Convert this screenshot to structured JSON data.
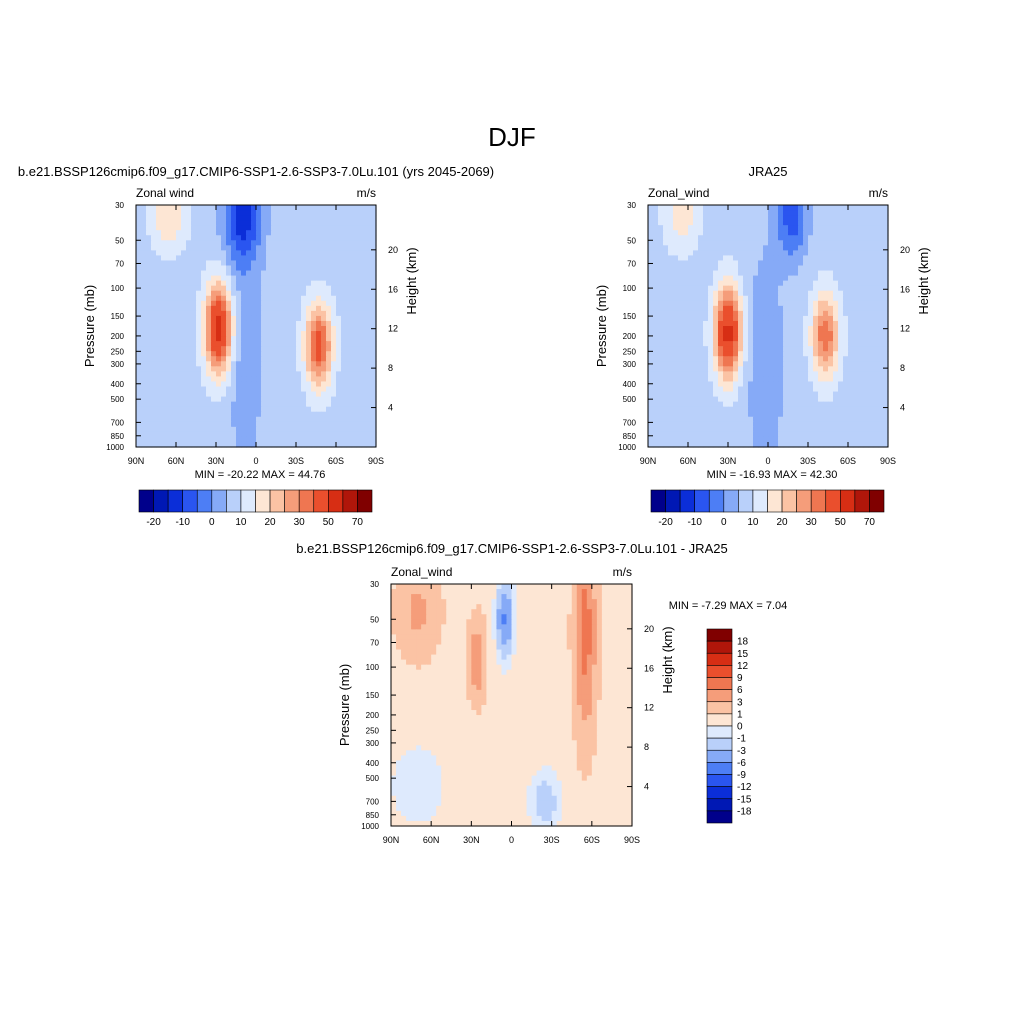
{
  "figure_title": "DJF",
  "chart_data": [
    {
      "type": "heatmap",
      "title": "b.e21.BSSP126cmip6.f09_g17.CMIP6-SSP1-2.6-SSP3-7.0Lu.101 (yrs 2045-2069)",
      "left_label": "Zonal wind",
      "right_label": "m/s",
      "ylabel": "Pressure (mb)",
      "y2label": "Height (km)",
      "xticks": [
        "90N",
        "60N",
        "30N",
        "0",
        "30S",
        "60S",
        "90S"
      ],
      "xticks_deg": [
        90,
        60,
        30,
        0,
        -30,
        -60,
        -90
      ],
      "yticks": [
        30,
        50,
        70,
        100,
        150,
        200,
        250,
        300,
        400,
        500,
        700,
        850,
        1000
      ],
      "y2ticks": [
        20,
        16,
        12,
        8,
        4
      ],
      "stats": "MIN = -20.22  MAX =  44.76",
      "min": -20.22,
      "max": 44.76,
      "colorbar": {
        "orientation": "horizontal",
        "colors": [
          "#00008b",
          "#0018b4",
          "#0b2ed8",
          "#2a55f0",
          "#4d7ef5",
          "#86aaf7",
          "#b9d0fa",
          "#deeafd",
          "#fde6d4",
          "#fbc3a4",
          "#f59d7a",
          "#ef7651",
          "#ea4f2d",
          "#d72e14",
          "#b0160a",
          "#800000"
        ],
        "labels": [
          "-20",
          "-10",
          "0",
          "10",
          "20",
          "30",
          "50",
          "70"
        ]
      },
      "features": [
        {
          "lat": 28,
          "p": 180,
          "value": 40,
          "sx": 7,
          "sy": 0.45
        },
        {
          "lat": -47,
          "p": 230,
          "value": 30,
          "sx": 7,
          "sy": 0.42
        },
        {
          "lat": 65,
          "p": 35,
          "value": 12,
          "sx": 9,
          "sy": 0.35
        },
        {
          "lat": 10,
          "p": 35,
          "value": -20,
          "sx": 10,
          "sy": 0.5
        },
        {
          "lat": 8,
          "p": 300,
          "value": -6,
          "sx": 10,
          "sy": 1.2
        }
      ]
    },
    {
      "type": "heatmap",
      "title": "JRA25",
      "left_label": "Zonal_wind",
      "right_label": "m/s",
      "ylabel": "Pressure (mb)",
      "y2label": "Height (km)",
      "xticks": [
        "90N",
        "60N",
        "30N",
        "0",
        "30S",
        "60S",
        "90S"
      ],
      "xticks_deg": [
        90,
        60,
        30,
        0,
        -30,
        -60,
        -90
      ],
      "yticks": [
        30,
        50,
        70,
        100,
        150,
        200,
        250,
        300,
        400,
        500,
        700,
        850,
        1000
      ],
      "y2ticks": [
        20,
        16,
        12,
        8,
        4
      ],
      "stats": "MIN = -16.93  MAX =  42.30",
      "min": -16.93,
      "max": 42.3,
      "colorbar": {
        "orientation": "horizontal",
        "colors": [
          "#00008b",
          "#0018b4",
          "#0b2ed8",
          "#2a55f0",
          "#4d7ef5",
          "#86aaf7",
          "#b9d0fa",
          "#deeafd",
          "#fde6d4",
          "#fbc3a4",
          "#f59d7a",
          "#ef7651",
          "#ea4f2d",
          "#d72e14",
          "#b0160a",
          "#800000"
        ],
        "labels": [
          "-20",
          "-10",
          "0",
          "10",
          "20",
          "30",
          "50",
          "70"
        ]
      },
      "features": [
        {
          "lat": 30,
          "p": 190,
          "value": 40,
          "sx": 7,
          "sy": 0.45
        },
        {
          "lat": -43,
          "p": 200,
          "value": 26,
          "sx": 7,
          "sy": 0.42
        },
        {
          "lat": 65,
          "p": 35,
          "value": 10,
          "sx": 9,
          "sy": 0.35
        },
        {
          "lat": -18,
          "p": 35,
          "value": -16,
          "sx": 8,
          "sy": 0.45
        },
        {
          "lat": 2,
          "p": 300,
          "value": -7,
          "sx": 10,
          "sy": 1.2
        }
      ]
    },
    {
      "type": "heatmap",
      "title": "b.e21.BSSP126cmip6.f09_g17.CMIP6-SSP1-2.6-SSP3-7.0Lu.101 - JRA25",
      "left_label": "Zonal_wind",
      "right_label": "m/s",
      "ylabel": "Pressure (mb)",
      "y2label": "Height (km)",
      "xticks": [
        "90N",
        "60N",
        "30N",
        "0",
        "30S",
        "60S",
        "90S"
      ],
      "xticks_deg": [
        90,
        60,
        30,
        0,
        -30,
        -60,
        -90
      ],
      "yticks": [
        30,
        50,
        70,
        100,
        150,
        200,
        250,
        300,
        400,
        500,
        700,
        850,
        1000
      ],
      "y2ticks": [
        20,
        16,
        12,
        8,
        4
      ],
      "stats": "MIN =  -7.29  MAX =   7.04",
      "min": -7.29,
      "max": 7.04,
      "colorbar": {
        "orientation": "vertical",
        "colors": [
          "#800000",
          "#b0160a",
          "#d72e14",
          "#ea4f2d",
          "#ef7651",
          "#f59d7a",
          "#fbc3a4",
          "#fde6d4",
          "#deeafd",
          "#b9d0fa",
          "#86aaf7",
          "#4d7ef5",
          "#2a55f0",
          "#0b2ed8",
          "#0018b4",
          "#00008b"
        ],
        "labels": [
          "18",
          "15",
          "12",
          "9",
          "6",
          "3",
          "1",
          "0",
          "-1",
          "-3",
          "-6",
          "-9",
          "-12",
          "-15",
          "-18"
        ]
      },
      "features": [
        {
          "lat": -55,
          "p": 60,
          "value": 7,
          "sx": 5,
          "sy": 0.9
        },
        {
          "lat": 26,
          "p": 90,
          "value": 5,
          "sx": 4,
          "sy": 0.35
        },
        {
          "lat": 5,
          "p": 50,
          "value": -7,
          "sx": 4,
          "sy": 0.35
        },
        {
          "lat": 70,
          "p": 45,
          "value": 3,
          "sx": 10,
          "sy": 0.4
        },
        {
          "lat": 70,
          "p": 550,
          "value": -1.5,
          "sx": 14,
          "sy": 0.4
        },
        {
          "lat": -25,
          "p": 700,
          "value": -2.5,
          "sx": 8,
          "sy": 0.3
        }
      ]
    }
  ]
}
